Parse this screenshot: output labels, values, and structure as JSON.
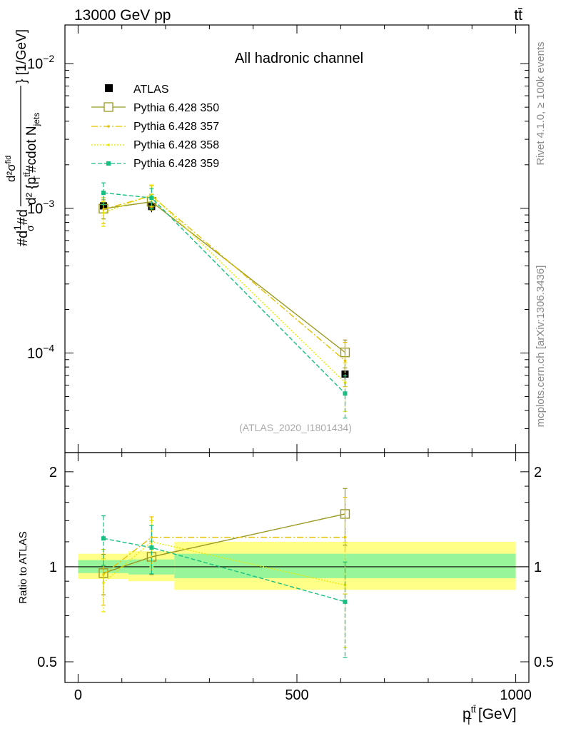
{
  "header": {
    "left": "13000 GeV pp",
    "right": "tt̄"
  },
  "side_labels": {
    "rivet": "Rivet 4.1.0, ≥ 100k events",
    "mcplots": "mcplots.cern.ch [arXiv:1306.3436]"
  },
  "chart_data": {
    "type": "line",
    "title": "All hadronic channel",
    "watermark": "(ATLAS_2020_I1801434)",
    "xlabel": "p_T^{tt̄} [GeV]",
    "xlabel_main": "p",
    "xlabel_sup": "tt̄",
    "xlabel_sub": "T",
    "xlabel_unit": "[GeV]",
    "ylabel_main": "#d²σ/d p_T^{tt̄} #cdot N_jets [1/GeV]",
    "ylabel_parts": {
      "a": "#d",
      "b": "1",
      "c": "σ",
      "d": "#d",
      "e": "d²σ",
      "f": "fid",
      "g": "d² {p",
      "h": "tt̄",
      "i": "T",
      "j": "#cdot N",
      "k": "jets",
      "l": "} [1/GeV]"
    },
    "ylabel_ratio": "Ratio to ATLAS",
    "xlim": [
      -30,
      1030
    ],
    "ylim_main": [
      2.05e-05,
      0.0185
    ],
    "ylim_ratio": [
      0.43,
      2.3
    ],
    "x_ticks": [
      "0",
      "500",
      "1000"
    ],
    "x_tick_values": [
      0,
      500,
      1000
    ],
    "y_ticks_main": [
      {
        "value": 0.01,
        "mant": "10",
        "exp": "−2"
      },
      {
        "value": 0.001,
        "mant": "10",
        "exp": "−3"
      },
      {
        "value": 0.0001,
        "mant": "10",
        "exp": "−4"
      }
    ],
    "y_ticks_ratio": [
      {
        "value": 2,
        "label": "2"
      },
      {
        "value": 1,
        "label": "1"
      },
      {
        "value": 0.5,
        "label": "0.5"
      }
    ],
    "bins": [
      {
        "lo": 0,
        "hi": 115
      },
      {
        "lo": 115,
        "hi": 220
      },
      {
        "lo": 220,
        "hi": 1000
      }
    ],
    "ratio_bands": [
      {
        "lo": 0,
        "hi": 115,
        "yellow": [
          0.915,
          1.1
        ],
        "green": [
          0.955,
          1.05
        ]
      },
      {
        "lo": 115,
        "hi": 220,
        "yellow": [
          0.9,
          1.12
        ],
        "green": [
          0.945,
          1.055
        ]
      },
      {
        "lo": 220,
        "hi": 1000,
        "yellow": [
          0.845,
          1.2
        ],
        "green": [
          0.92,
          1.1
        ]
      }
    ],
    "atlas": {
      "name": "ATLAS",
      "color": "#000000",
      "x": [
        58,
        168,
        610
      ],
      "y": [
        0.00104,
        0.00103,
        7.15e-05
      ],
      "err": [
        9e-05,
        9e-05,
        1.1e-05
      ]
    },
    "series": [
      {
        "name": "Pythia 6.428 350",
        "color": "#999922",
        "dash": "",
        "marker": "open-square",
        "x": [
          58,
          168,
          610
        ],
        "y": [
          0.000995,
          0.00111,
          0.000101
        ],
        "err": [
          0.00015,
          0.00014,
          2.2e-05
        ],
        "ratio": [
          0.955,
          1.075,
          1.47
        ],
        "ratio_err": [
          0.14,
          0.13,
          0.3
        ]
      },
      {
        "name": "Pythia 6.428 357",
        "color": "#E5C100",
        "dash": "9,3,2,3",
        "marker": "dot",
        "x": [
          58,
          168,
          610
        ],
        "y": [
          0.000985,
          0.00122,
          8.85e-05
        ],
        "err": [
          0.0002,
          0.00021,
          3e-05
        ],
        "ratio": [
          0.945,
          1.24,
          1.24
        ],
        "ratio_err": [
          0.19,
          0.2,
          0.42
        ]
      },
      {
        "name": "Pythia 6.428 358",
        "color": "#E8E800",
        "dash": "2,2",
        "marker": "dot",
        "x": [
          58,
          168,
          610
        ],
        "y": [
          0.00093,
          0.00124,
          6.25e-05
        ],
        "err": [
          0.00018,
          0.00021,
          2.3e-05
        ],
        "ratio": [
          0.89,
          1.2,
          0.875
        ],
        "ratio_err": [
          0.17,
          0.2,
          0.32
        ]
      },
      {
        "name": "Pythia 6.428 359",
        "color": "#17C080",
        "dash": "6,3",
        "marker": "filled-square",
        "x": [
          58,
          168,
          610
        ],
        "y": [
          0.00128,
          0.00118,
          5.25e-05
        ],
        "err": [
          0.00022,
          0.00019,
          1.7e-05
        ],
        "ratio": [
          1.23,
          1.15,
          0.775
        ],
        "ratio_err": [
          0.22,
          0.2,
          0.26
        ]
      }
    ]
  }
}
